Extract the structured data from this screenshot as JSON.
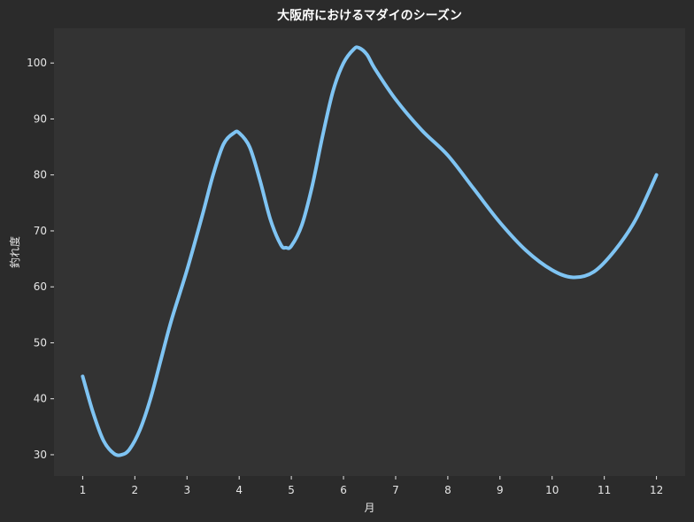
{
  "colors": {
    "figure_background": "#2b2b2b",
    "plot_background": "#333333",
    "line": "#7fc4f3",
    "text": "#e6e6e6",
    "title": "#ffffff"
  },
  "chart_data": {
    "type": "line",
    "title": "大阪府におけるマダイのシーズン",
    "xlabel": "月",
    "ylabel": "釣れ度",
    "x": [
      1,
      2,
      3,
      4,
      5,
      6,
      7,
      8,
      9,
      10,
      11,
      12
    ],
    "xticks": [
      "1",
      "2",
      "3",
      "4",
      "5",
      "6",
      "7",
      "8",
      "9",
      "10",
      "11",
      "12"
    ],
    "yticks": [
      "30",
      "40",
      "50",
      "60",
      "70",
      "80",
      "90",
      "100"
    ],
    "xlim": [
      0.45,
      12.55
    ],
    "ylim": [
      26.2,
      106.2
    ],
    "grid": false,
    "legend": "none",
    "series": [
      {
        "curve": [
          [
            1.0,
            44
          ],
          [
            1.2,
            37.5
          ],
          [
            1.4,
            32.5
          ],
          [
            1.6,
            30.2
          ],
          [
            1.75,
            30
          ],
          [
            1.9,
            31
          ],
          [
            2.1,
            34.5
          ],
          [
            2.3,
            40
          ],
          [
            2.5,
            47
          ],
          [
            2.7,
            54
          ],
          [
            3.0,
            63
          ],
          [
            3.3,
            73
          ],
          [
            3.5,
            80
          ],
          [
            3.7,
            85.5
          ],
          [
            3.9,
            87.5
          ],
          [
            4.0,
            87.5
          ],
          [
            4.2,
            85
          ],
          [
            4.4,
            79
          ],
          [
            4.6,
            72
          ],
          [
            4.8,
            67.5
          ],
          [
            4.9,
            67
          ],
          [
            5.0,
            67.3
          ],
          [
            5.2,
            71
          ],
          [
            5.4,
            78
          ],
          [
            5.6,
            87
          ],
          [
            5.8,
            95
          ],
          [
            6.0,
            100
          ],
          [
            6.2,
            102.5
          ],
          [
            6.3,
            102.7
          ],
          [
            6.45,
            101.5
          ],
          [
            6.6,
            99
          ],
          [
            7.0,
            93.5
          ],
          [
            7.5,
            88
          ],
          [
            8.0,
            83.5
          ],
          [
            8.5,
            77.5
          ],
          [
            9.0,
            71.5
          ],
          [
            9.5,
            66.5
          ],
          [
            10.0,
            63
          ],
          [
            10.4,
            61.7
          ],
          [
            10.8,
            62.7
          ],
          [
            11.2,
            66.5
          ],
          [
            11.6,
            72
          ],
          [
            12.0,
            80
          ]
        ]
      }
    ]
  }
}
